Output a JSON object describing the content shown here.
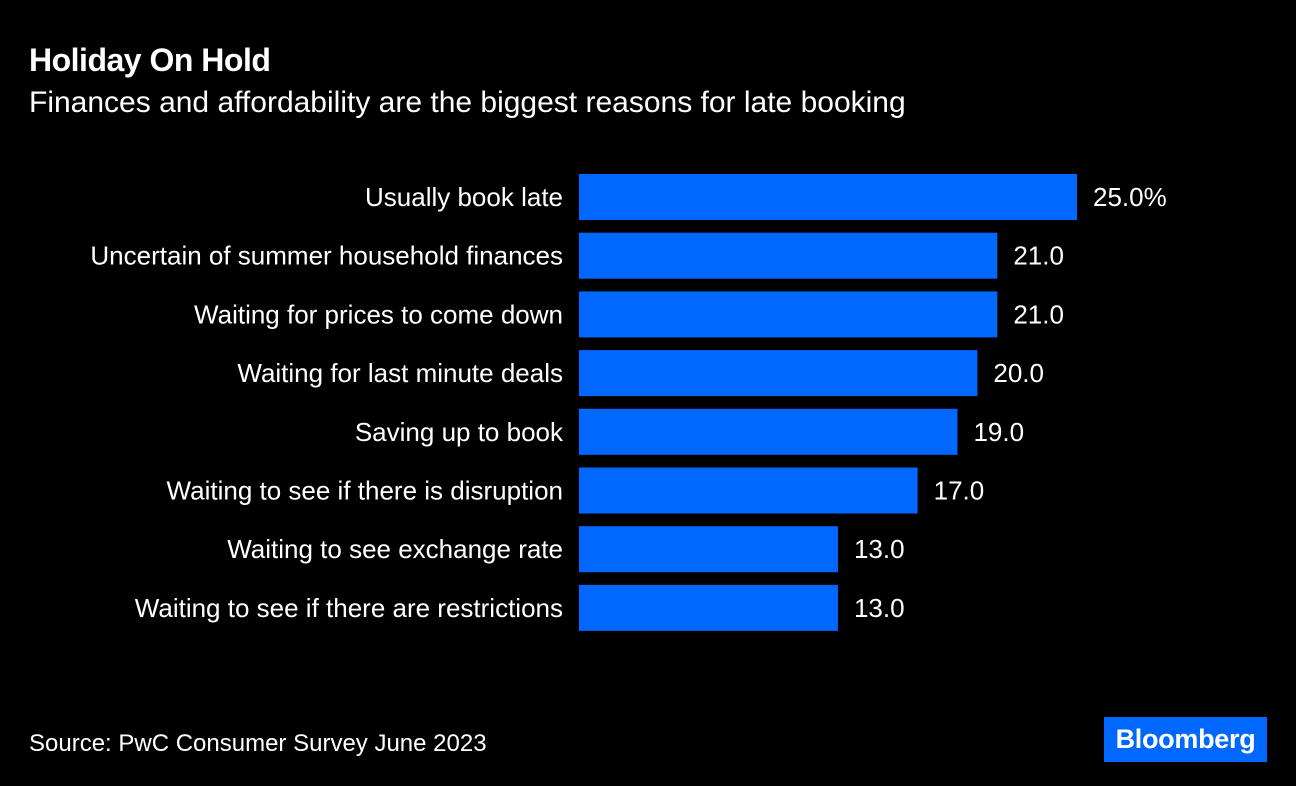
{
  "chart_data": {
    "type": "bar",
    "orientation": "horizontal",
    "title": "Holiday On Hold",
    "subtitle": "Finances and affordability are the biggest reasons for late booking",
    "categories": [
      "Usually book late",
      "Uncertain of summer household finances",
      "Waiting for prices to come down",
      "Waiting for last minute deals",
      "Saving up to book",
      "Waiting to see if there is disruption",
      "Waiting to see exchange rate",
      "Waiting to see if there are restrictions"
    ],
    "values": [
      25.0,
      21.0,
      21.0,
      20.0,
      19.0,
      17.0,
      13.0,
      13.0
    ],
    "value_labels": [
      "25.0%",
      "21.0",
      "21.0",
      "20.0",
      "19.0",
      "17.0",
      "13.0",
      "13.0"
    ],
    "xlim": [
      0,
      25
    ],
    "grid": false,
    "bar_color": "#0068ff",
    "background": "#000000"
  },
  "source": "Source: PwC Consumer Survey June 2023",
  "logo": "Bloomberg"
}
